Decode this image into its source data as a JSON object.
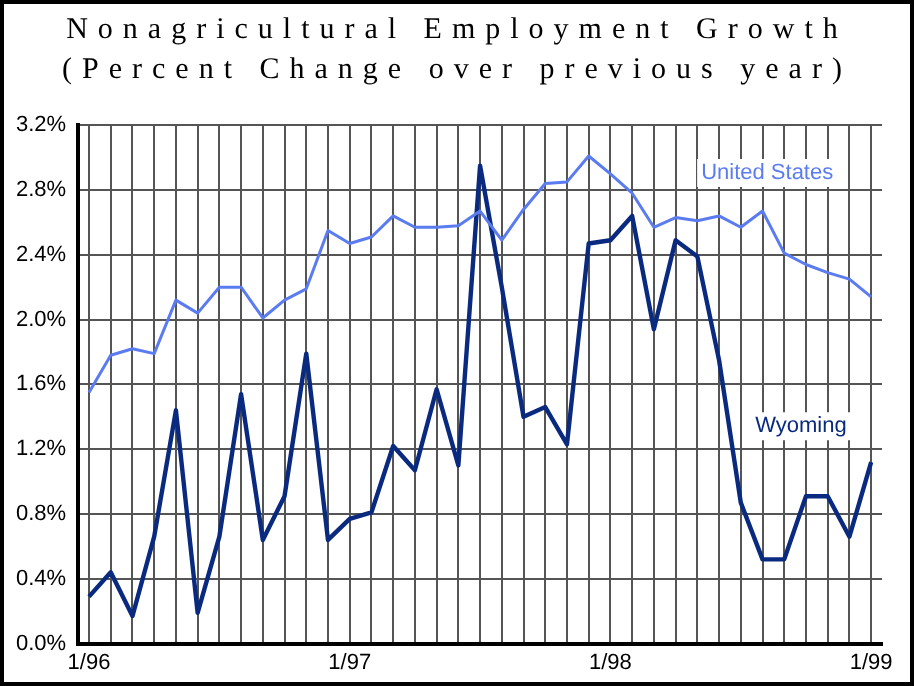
{
  "chart_data": {
    "type": "line",
    "title": "Nonagricultural Employment Growth",
    "subtitle": "(Percent Change over previous year)",
    "categories": [
      "1/96",
      null,
      null,
      null,
      null,
      null,
      null,
      null,
      null,
      null,
      null,
      null,
      "1/97",
      null,
      null,
      null,
      null,
      null,
      null,
      null,
      null,
      null,
      null,
      null,
      "1/98",
      null,
      null,
      null,
      null,
      null,
      null,
      null,
      null,
      null,
      null,
      null,
      "1/99"
    ],
    "series": [
      {
        "name": "United States",
        "color": "#5b7cf0",
        "values": [
          1.55,
          1.78,
          1.82,
          1.79,
          2.12,
          2.04,
          2.2,
          2.2,
          2.01,
          2.12,
          2.19,
          2.55,
          2.47,
          2.51,
          2.64,
          2.57,
          2.57,
          2.58,
          2.67,
          2.49,
          2.68,
          2.84,
          2.85,
          3.01,
          2.9,
          2.78,
          2.57,
          2.63,
          2.61,
          2.64,
          2.57,
          2.67,
          2.41,
          2.34,
          2.29,
          2.25,
          2.14
        ]
      },
      {
        "name": "Wyoming",
        "color": "#0a2a80",
        "values": [
          0.29,
          0.44,
          0.17,
          0.66,
          1.44,
          0.19,
          0.66,
          1.54,
          0.64,
          0.91,
          1.79,
          0.64,
          0.77,
          0.81,
          1.22,
          1.07,
          1.57,
          1.1,
          2.95,
          2.2,
          1.4,
          1.46,
          1.23,
          2.47,
          2.49,
          2.64,
          1.94,
          2.49,
          2.39,
          1.75,
          0.87,
          0.52,
          0.52,
          0.91,
          0.91,
          0.66,
          1.12
        ]
      }
    ],
    "ylim": [
      0,
      3.2
    ],
    "yticks": [
      {
        "value": 0,
        "label": "0.0%"
      },
      {
        "value": 0.4,
        "label": "0.4%"
      },
      {
        "value": 0.8,
        "label": "0.8%"
      },
      {
        "value": 1.2,
        "label": "1.2%"
      },
      {
        "value": 1.6,
        "label": "1.6%"
      },
      {
        "value": 2.0,
        "label": "2.0%"
      },
      {
        "value": 2.4,
        "label": "2.4%"
      },
      {
        "value": 2.8,
        "label": "2.8%"
      },
      {
        "value": 3.2,
        "label": "3.2%"
      }
    ],
    "grid": true,
    "legend": false,
    "marker": "none",
    "line_style": "solid"
  }
}
